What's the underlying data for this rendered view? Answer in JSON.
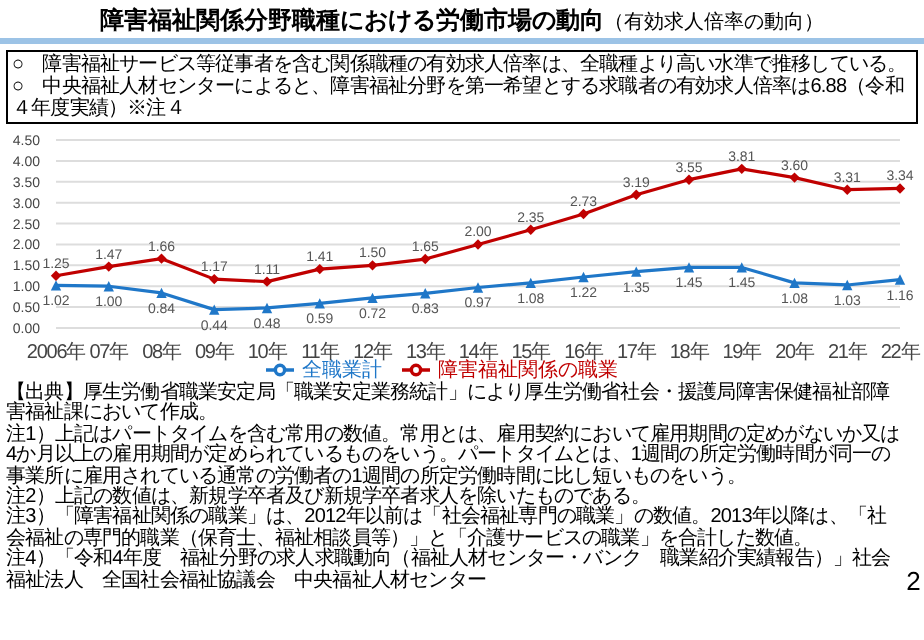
{
  "chart_data": {
    "type": "line",
    "title": "障害福祉関係分野職種における労働市場の動向",
    "subtitle": "（有効求人倍率の動向）",
    "categories": [
      "2006年",
      "07年",
      "08年",
      "09年",
      "10年",
      "11年",
      "12年",
      "13年",
      "14年",
      "15年",
      "16年",
      "17年",
      "18年",
      "19年",
      "20年",
      "21年",
      "22年"
    ],
    "series": [
      {
        "name": "全職業計",
        "color": "#1f77c8",
        "marker": "triangle",
        "values": [
          1.02,
          1.0,
          0.84,
          0.44,
          0.48,
          0.59,
          0.72,
          0.83,
          0.97,
          1.08,
          1.22,
          1.35,
          1.45,
          1.45,
          1.08,
          1.03,
          1.16
        ],
        "value_labels": [
          "1.02",
          "1.00",
          "0.84",
          "0.44",
          "0.48",
          "0.59",
          "0.72",
          "0.83",
          "0.97",
          "1.08",
          "1.22",
          "1.35",
          "1.45",
          "1.45",
          "1.08",
          "1.03",
          "1.16"
        ]
      },
      {
        "name": "障害福祉関係の職業",
        "color": "#c00000",
        "marker": "diamond",
        "values": [
          1.25,
          1.47,
          1.66,
          1.17,
          1.11,
          1.41,
          1.5,
          1.65,
          2.0,
          2.35,
          2.73,
          3.19,
          3.55,
          3.81,
          3.6,
          3.31,
          3.34
        ],
        "value_labels": [
          "1.25",
          "1.47",
          "1.66",
          "1.17",
          "1.11",
          "1.41",
          "1.50",
          "1.65",
          "2.00",
          "2.35",
          "2.73",
          "3.19",
          "3.55",
          "3.81",
          "3.60",
          "3.31",
          "3.34"
        ]
      }
    ],
    "ylim": [
      0,
      4.5
    ],
    "yticks": [
      {
        "value": 0,
        "label": "0.00"
      },
      {
        "value": 0.5,
        "label": "0.50"
      },
      {
        "value": 1,
        "label": "1.00"
      },
      {
        "value": 1.5,
        "label": "1.50"
      },
      {
        "value": 2,
        "label": "2.00"
      },
      {
        "value": 2.5,
        "label": "2.50"
      },
      {
        "value": 3,
        "label": "3.00"
      },
      {
        "value": 3.5,
        "label": "3.50"
      },
      {
        "value": 4,
        "label": "4.00"
      },
      {
        "value": 4.5,
        "label": "4.50"
      }
    ],
    "grid": "y",
    "legend": "bottom",
    "annotations": [
      "○　障害福祉サービス等従事者を含む関係職種の有効求人倍率は、全職種より高い水準で推移している。",
      "○　中央福祉人材センターによると、障害福祉分野を第一希望とする求職者の有効求人倍率は6.88（令和４年度実績）※注４",
      "【出典】厚生労働省職業安定局「職業安定業務統計」により厚生労働省社会・援護局障害保健福祉部障害福祉課において作成。",
      "注1）上記はパートタイムを含む常用の数値。常用とは、雇用契約において雇用期間の定めがないか又は4か月以上の雇用期間が定められているものをいう。パートタイムとは、1週間の所定労働時間が同一の事業所に雇用されている通常の労働者の1週間の所定労働時間に比し短いものをいう。",
      "注2）上記の数値は、新規学卒者及び新規学卒者求人を除いたものである。",
      "注3）「障害福祉関係の職業」は、2012年以前は「社会福祉専門の職業」の数値。2013年以降は、「社会福祉の専門的職業（保育士、福祉相談員等）」と「介護サービスの職業」を合計した数値。",
      "注4）「令和4年度　福祉分野の求人求職動向（福祉人材センター・バンク　職業紹介実績報告）」社会福祉法人　全国社会福祉協議会　中央福祉人材センター",
      "2"
    ]
  }
}
